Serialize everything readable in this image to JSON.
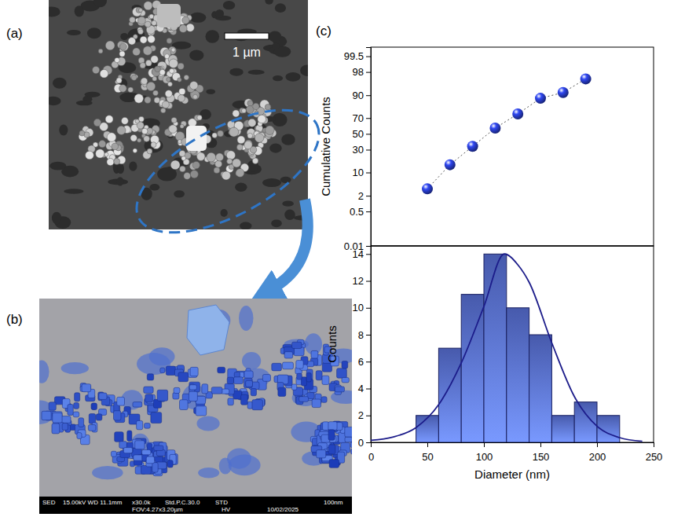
{
  "panels": [
    {
      "label": "(a)",
      "scale_bar": "1 µm"
    },
    {
      "label": "(b)",
      "info_bar": {
        "line1": [
          "SED",
          "15.00kV WD 11.1mm",
          "x30.0k",
          "Std.P.C.30.0",
          "STD",
          "100nm"
        ],
        "line2": [
          "FOV:4.27x3.20µm",
          "HV",
          "10/02/2025"
        ]
      }
    },
    {
      "label": "(c)"
    }
  ],
  "chart_data": [
    {
      "type": "probability",
      "ylabel": "Cumulative Counts",
      "x": [
        50,
        70,
        90,
        110,
        130,
        150,
        170,
        190
      ],
      "values": [
        3.4,
        15.3,
        33.9,
        57.6,
        74.6,
        88.1,
        91.5,
        96.6
      ],
      "color": "#1f2f9e",
      "marker": "sphere",
      "line_style": "dotted",
      "xlim": [
        0,
        250
      ],
      "ylim": [
        0.01,
        99.8
      ],
      "yticks": [
        0.01,
        0.5,
        2,
        10,
        30,
        50,
        70,
        90,
        98,
        99.5
      ],
      "tick_labels": "y"
    },
    {
      "type": "histogram",
      "xlabel": "Diameter (nm)",
      "ylabel": "Counts",
      "bins": [
        40,
        60,
        80,
        100,
        120,
        140,
        160,
        180,
        200,
        220
      ],
      "values": [
        2,
        7,
        11,
        14,
        10,
        8,
        2,
        3,
        2
      ],
      "color": "#5b73dd",
      "series": [
        {
          "type": "line",
          "color": "#1c1c8a",
          "x": [
            0,
            20,
            40,
            60,
            80,
            100,
            118,
            130,
            140,
            160,
            180,
            200,
            220,
            240
          ],
          "values": [
            0.15,
            0.4,
            1.1,
            2.8,
            5.9,
            10.1,
            14.0,
            13.2,
            11.9,
            7.4,
            3.4,
            1.2,
            0.35,
            0.08
          ]
        }
      ],
      "xlim": [
        0,
        250
      ],
      "xticks": [
        0,
        50,
        100,
        150,
        200,
        250
      ],
      "ylim": [
        0,
        14.6
      ],
      "yticks": [
        0,
        2,
        4,
        6,
        8,
        10,
        12,
        14
      ]
    }
  ]
}
